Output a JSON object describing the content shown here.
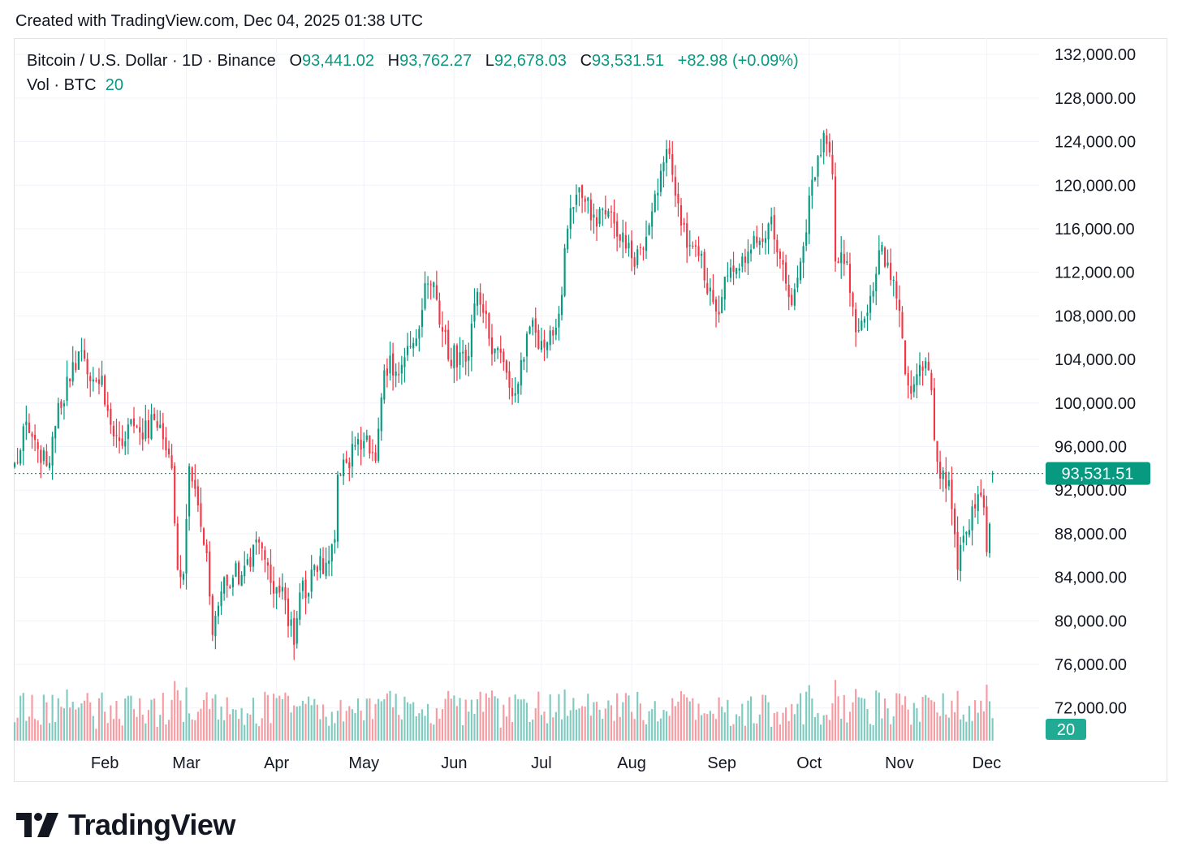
{
  "caption": "Created with TradingView.com, Dec 04, 2025 01:38 UTC",
  "legend": {
    "symbol": "Bitcoin / U.S. Dollar · 1D · Binance",
    "o_label": "O",
    "o_value": "93,441.02",
    "h_label": "H",
    "h_value": "93,762.27",
    "l_label": "L",
    "l_value": "92,678.03",
    "c_label": "C",
    "c_value": "93,531.51",
    "change": "+82.98 (+0.09%)",
    "vol_label": "Vol · BTC",
    "vol_value": "20"
  },
  "brand": {
    "name": "TradingView"
  },
  "colors": {
    "up": "#089981",
    "down": "#f23645",
    "grid": "#f0f3fa",
    "text": "#131722"
  },
  "chart_data": {
    "type": "candlestick",
    "symbol": "Bitcoin / U.S. Dollar",
    "interval": "1D",
    "exchange": "Binance",
    "y_ticks": [
      "132,000.00",
      "128,000.00",
      "124,000.00",
      "120,000.00",
      "116,000.00",
      "112,000.00",
      "108,000.00",
      "104,000.00",
      "100,000.00",
      "96,000.00",
      "92,000.00",
      "88,000.00",
      "84,000.00",
      "80,000.00",
      "76,000.00",
      "72,000.00"
    ],
    "y_tick_values": [
      132000,
      128000,
      124000,
      120000,
      116000,
      112000,
      108000,
      104000,
      100000,
      96000,
      92000,
      88000,
      84000,
      80000,
      76000,
      72000
    ],
    "ylim": [
      69000,
      133500
    ],
    "x_ticks": [
      "Feb",
      "Mar",
      "Apr",
      "May",
      "Jun",
      "Jul",
      "Aug",
      "Sep",
      "Oct",
      "Nov",
      "Dec"
    ],
    "x_tick_dates": [
      "2025-02-01",
      "2025-03-01",
      "2025-04-01",
      "2025-05-01",
      "2025-06-01",
      "2025-07-01",
      "2025-08-01",
      "2025-09-01",
      "2025-10-01",
      "2025-11-01",
      "2025-12-01"
    ],
    "xlim": [
      "2025-01-01",
      "2025-12-19"
    ],
    "last_price": 93531.51,
    "last_price_label": "93,531.51",
    "volume_label": "20",
    "volume_ylim": [
      0,
      12000
    ],
    "close_anchors": [
      [
        "2025-01-01",
        94500
      ],
      [
        "2025-01-05",
        98300
      ],
      [
        "2025-01-07",
        96900
      ],
      [
        "2025-01-10",
        94500
      ],
      [
        "2025-01-13",
        94500
      ],
      [
        "2025-01-16",
        100000
      ],
      [
        "2025-01-20",
        102000
      ],
      [
        "2025-01-24",
        104800
      ],
      [
        "2025-01-27",
        102000
      ],
      [
        "2025-01-31",
        102500
      ],
      [
        "2025-02-03",
        98000
      ],
      [
        "2025-02-06",
        96500
      ],
      [
        "2025-02-12",
        97800
      ],
      [
        "2025-02-20",
        98000
      ],
      [
        "2025-02-24",
        94000
      ],
      [
        "2025-02-26",
        84700
      ],
      [
        "2025-02-28",
        84300
      ],
      [
        "2025-03-02",
        94200
      ],
      [
        "2025-03-05",
        90600
      ],
      [
        "2025-03-08",
        86200
      ],
      [
        "2025-03-10",
        78700
      ],
      [
        "2025-03-14",
        84000
      ],
      [
        "2025-03-20",
        84200
      ],
      [
        "2025-03-26",
        87200
      ],
      [
        "2025-03-31",
        82500
      ],
      [
        "2025-04-03",
        83100
      ],
      [
        "2025-04-07",
        77800
      ],
      [
        "2025-04-09",
        82600
      ],
      [
        "2025-04-15",
        84500
      ],
      [
        "2025-04-21",
        87500
      ],
      [
        "2025-04-22",
        93400
      ],
      [
        "2025-04-25",
        94500
      ],
      [
        "2025-05-01",
        96500
      ],
      [
        "2025-05-05",
        94700
      ],
      [
        "2025-05-08",
        103000
      ],
      [
        "2025-05-14",
        103500
      ],
      [
        "2025-05-20",
        106800
      ],
      [
        "2025-05-22",
        111000
      ],
      [
        "2025-05-26",
        109500
      ],
      [
        "2025-05-30",
        104000
      ],
      [
        "2025-06-04",
        104700
      ],
      [
        "2025-06-06",
        104300
      ],
      [
        "2025-06-09",
        110200
      ],
      [
        "2025-06-13",
        105900
      ],
      [
        "2025-06-17",
        104600
      ],
      [
        "2025-06-22",
        100900
      ],
      [
        "2025-06-27",
        107000
      ],
      [
        "2025-07-01",
        105700
      ],
      [
        "2025-07-07",
        108200
      ],
      [
        "2025-07-10",
        116000
      ],
      [
        "2025-07-14",
        119800
      ],
      [
        "2025-07-19",
        117300
      ],
      [
        "2025-07-25",
        117500
      ],
      [
        "2025-08-01",
        113300
      ],
      [
        "2025-08-05",
        114100
      ],
      [
        "2025-08-10",
        119300
      ],
      [
        "2025-08-13",
        123300
      ],
      [
        "2025-08-18",
        116300
      ],
      [
        "2025-08-24",
        113500
      ],
      [
        "2025-08-30",
        108400
      ],
      [
        "2025-09-03",
        111700
      ],
      [
        "2025-09-10",
        113900
      ],
      [
        "2025-09-18",
        117100
      ],
      [
        "2025-09-22",
        112700
      ],
      [
        "2025-09-25",
        109000
      ],
      [
        "2025-09-29",
        114400
      ],
      [
        "2025-10-02",
        120500
      ],
      [
        "2025-10-06",
        124800
      ],
      [
        "2025-10-09",
        121000
      ],
      [
        "2025-10-10",
        113000
      ],
      [
        "2025-10-14",
        113000
      ],
      [
        "2025-10-17",
        106500
      ],
      [
        "2025-10-21",
        108300
      ],
      [
        "2025-10-26",
        114500
      ],
      [
        "2025-10-28",
        112900
      ],
      [
        "2025-10-31",
        109600
      ],
      [
        "2025-11-04",
        101600
      ],
      [
        "2025-11-11",
        103000
      ],
      [
        "2025-11-14",
        94600
      ],
      [
        "2025-11-18",
        92900
      ],
      [
        "2025-11-21",
        84700
      ],
      [
        "2025-11-26",
        90500
      ],
      [
        "2025-11-30",
        90400
      ],
      [
        "2025-12-01",
        86300
      ],
      [
        "2025-12-03",
        93531.51
      ]
    ]
  }
}
